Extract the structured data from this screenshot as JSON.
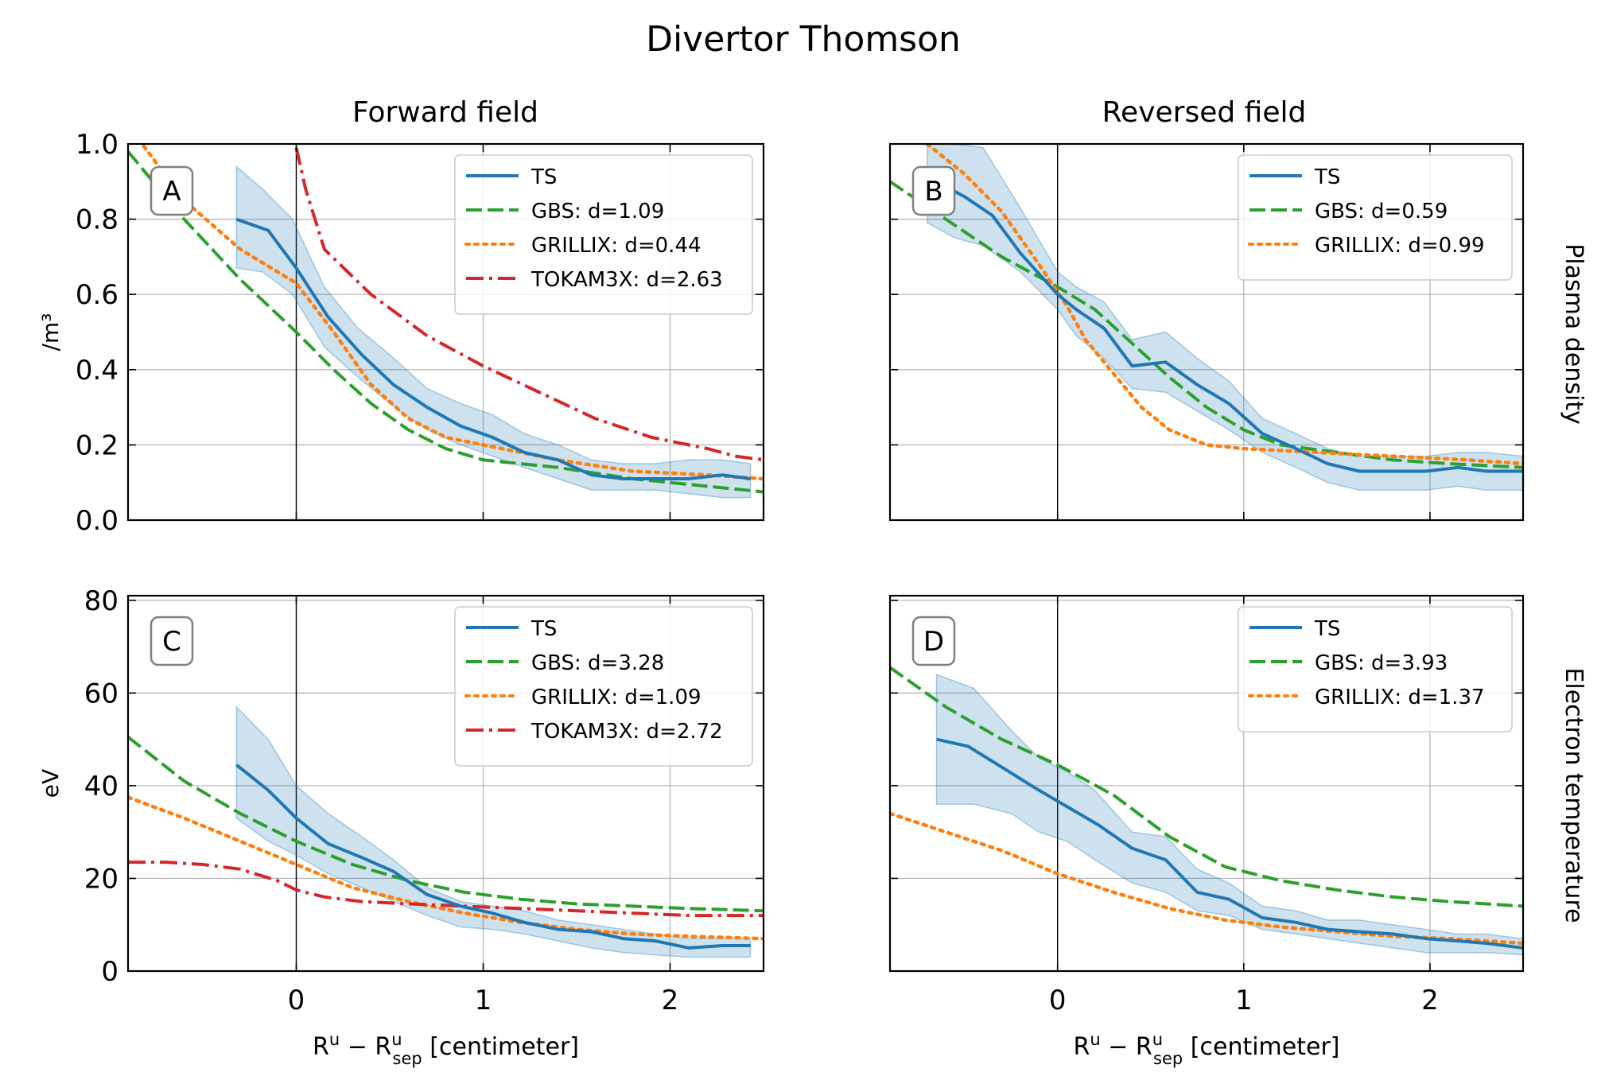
{
  "figure_title": "Divertor Thomson",
  "column_titles": [
    "Forward field",
    "Reversed field"
  ],
  "row_titles": [
    "Plasma density",
    "Electron temperature"
  ],
  "x_label": "R^u - R^u_sep [centimeter]",
  "x_label_parts": {
    "main": "R",
    "sup": "u",
    "minus": " − ",
    "main2": "R",
    "sup2": "u",
    "sub2": "sep",
    "unit": " [centimeter]"
  },
  "colors": {
    "TS": "#1f77b4",
    "GBS": "#2ca02c",
    "GRILLIX": "#ff7f0e",
    "TOKAM3X": "#d62728",
    "band": "#1f77b4"
  },
  "chart_data": [
    {
      "panel": "A",
      "type": "line",
      "title": "Forward field",
      "xlim": [
        -0.9,
        2.5
      ],
      "ylim": [
        0,
        1.0
      ],
      "xticks": [
        0,
        1,
        2
      ],
      "yticks": [
        0.0,
        0.2,
        0.4,
        0.6,
        0.8,
        1.0
      ],
      "ytick_labels": [
        "0.0",
        "0.2",
        "0.4",
        "0.6",
        "0.8",
        "1.0"
      ],
      "ylabel": "/m³",
      "show_xticklabels": false,
      "show_yticklabels": true,
      "band": {
        "x": [
          -0.32,
          -0.18,
          -0.02,
          0.15,
          0.33,
          0.5,
          0.7,
          0.88,
          1.05,
          1.22,
          1.4,
          1.58,
          1.75,
          1.92,
          2.1,
          2.28,
          2.43
        ],
        "upper": [
          0.94,
          0.88,
          0.8,
          0.62,
          0.51,
          0.44,
          0.35,
          0.31,
          0.28,
          0.23,
          0.2,
          0.16,
          0.15,
          0.15,
          0.16,
          0.16,
          0.15
        ],
        "lower": [
          0.67,
          0.66,
          0.6,
          0.46,
          0.38,
          0.31,
          0.24,
          0.2,
          0.17,
          0.14,
          0.11,
          0.08,
          0.08,
          0.08,
          0.07,
          0.06,
          0.06
        ]
      },
      "series": [
        {
          "name": "TS",
          "legend": "TS",
          "style": "solid",
          "x": [
            -0.32,
            -0.15,
            0.0,
            0.17,
            0.35,
            0.52,
            0.7,
            0.88,
            1.05,
            1.22,
            1.4,
            1.58,
            1.75,
            1.92,
            2.1,
            2.28,
            2.43
          ],
          "y": [
            0.8,
            0.77,
            0.67,
            0.54,
            0.44,
            0.36,
            0.3,
            0.25,
            0.22,
            0.18,
            0.16,
            0.12,
            0.11,
            0.11,
            0.11,
            0.12,
            0.11
          ]
        },
        {
          "name": "GBS",
          "legend": "GBS: d=1.09",
          "style": "dashed",
          "x": [
            -0.9,
            -0.6,
            -0.3,
            0.0,
            0.2,
            0.4,
            0.6,
            0.8,
            1.0,
            1.4,
            1.8,
            2.2,
            2.5
          ],
          "y": [
            0.98,
            0.8,
            0.64,
            0.5,
            0.4,
            0.31,
            0.24,
            0.19,
            0.16,
            0.14,
            0.11,
            0.09,
            0.075
          ]
        },
        {
          "name": "GRILLIX",
          "legend": "GRILLIX: d=0.44",
          "style": "dotted",
          "x": [
            -0.9,
            -0.6,
            -0.3,
            0.0,
            0.2,
            0.4,
            0.6,
            0.8,
            1.0,
            1.4,
            1.8,
            2.2,
            2.5
          ],
          "y": [
            1.05,
            0.85,
            0.72,
            0.63,
            0.5,
            0.36,
            0.27,
            0.22,
            0.2,
            0.16,
            0.13,
            0.12,
            0.11
          ]
        },
        {
          "name": "TOKAM3X",
          "legend": "TOKAM3X: d=2.63",
          "style": "dashdot",
          "x": [
            0.0,
            0.05,
            0.15,
            0.4,
            0.7,
            1.0,
            1.3,
            1.6,
            1.9,
            2.2,
            2.35,
            2.5
          ],
          "y": [
            0.99,
            0.88,
            0.72,
            0.6,
            0.49,
            0.41,
            0.34,
            0.27,
            0.22,
            0.19,
            0.17,
            0.16
          ]
        }
      ]
    },
    {
      "panel": "B",
      "type": "line",
      "title": "Reversed field",
      "xlim": [
        -0.9,
        2.5
      ],
      "ylim": [
        0,
        1.0
      ],
      "xticks": [
        0,
        1,
        2
      ],
      "yticks": [
        0.0,
        0.2,
        0.4,
        0.6,
        0.8,
        1.0
      ],
      "ytick_labels": [],
      "ylabel": "",
      "row_title": "Plasma density",
      "show_xticklabels": false,
      "show_yticklabels": false,
      "band": {
        "x": [
          -0.7,
          -0.55,
          -0.4,
          -0.2,
          0.0,
          0.1,
          0.25,
          0.4,
          0.58,
          0.75,
          0.92,
          1.1,
          1.28,
          1.45,
          1.62,
          1.8,
          1.98,
          2.15,
          2.3,
          2.5
        ],
        "upper": [
          1.0,
          1.0,
          0.99,
          0.83,
          0.66,
          0.62,
          0.58,
          0.48,
          0.5,
          0.43,
          0.37,
          0.27,
          0.23,
          0.19,
          0.17,
          0.17,
          0.17,
          0.18,
          0.18,
          0.17
        ],
        "lower": [
          0.79,
          0.75,
          0.73,
          0.66,
          0.56,
          0.49,
          0.43,
          0.35,
          0.34,
          0.29,
          0.24,
          0.18,
          0.14,
          0.1,
          0.08,
          0.08,
          0.08,
          0.09,
          0.08,
          0.08
        ]
      },
      "series": [
        {
          "name": "TS",
          "legend": "TS",
          "style": "solid",
          "x": [
            -0.65,
            -0.5,
            -0.35,
            -0.2,
            0.0,
            0.1,
            0.25,
            0.4,
            0.58,
            0.75,
            0.92,
            1.1,
            1.28,
            1.45,
            1.62,
            1.8,
            1.98,
            2.15,
            2.3,
            2.5
          ],
          "y": [
            0.9,
            0.86,
            0.81,
            0.71,
            0.6,
            0.56,
            0.51,
            0.41,
            0.42,
            0.36,
            0.31,
            0.23,
            0.19,
            0.15,
            0.13,
            0.13,
            0.13,
            0.14,
            0.13,
            0.13
          ]
        },
        {
          "name": "GBS",
          "legend": "GBS: d=0.59",
          "style": "dashed",
          "x": [
            -0.9,
            -0.6,
            -0.3,
            0.0,
            0.2,
            0.4,
            0.6,
            0.8,
            1.0,
            1.2,
            1.5,
            1.8,
            2.1,
            2.5
          ],
          "y": [
            0.9,
            0.8,
            0.7,
            0.62,
            0.56,
            0.47,
            0.38,
            0.3,
            0.24,
            0.2,
            0.18,
            0.16,
            0.15,
            0.14
          ]
        },
        {
          "name": "GRILLIX",
          "legend": "GRILLIX: d=0.99",
          "style": "dotted",
          "x": [
            -0.7,
            -0.5,
            -0.3,
            -0.1,
            0.05,
            0.15,
            0.3,
            0.45,
            0.6,
            0.8,
            1.0,
            1.4,
            1.8,
            2.2,
            2.5
          ],
          "y": [
            1.0,
            0.92,
            0.82,
            0.68,
            0.57,
            0.48,
            0.39,
            0.3,
            0.24,
            0.2,
            0.19,
            0.18,
            0.17,
            0.16,
            0.15
          ]
        }
      ]
    },
    {
      "panel": "C",
      "type": "line",
      "title": "",
      "xlim": [
        -0.9,
        2.5
      ],
      "ylim": [
        0,
        81
      ],
      "xticks": [
        0,
        1,
        2
      ],
      "xtick_labels": [
        "0",
        "1",
        "2"
      ],
      "yticks": [
        0,
        20,
        40,
        60,
        80
      ],
      "ytick_labels": [
        "0",
        "20",
        "40",
        "60",
        "80"
      ],
      "ylabel": "eV",
      "xlabel": "R^u - R^u_sep [centimeter]",
      "show_xticklabels": true,
      "show_yticklabels": true,
      "band": {
        "x": [
          -0.32,
          -0.15,
          0.0,
          0.17,
          0.35,
          0.52,
          0.7,
          0.88,
          1.05,
          1.22,
          1.4,
          1.58,
          1.75,
          1.92,
          2.1,
          2.28,
          2.43
        ],
        "upper": [
          57,
          50,
          40,
          34,
          29,
          24,
          18,
          15,
          14,
          13,
          11,
          10,
          9,
          8,
          7,
          7,
          7
        ],
        "lower": [
          33,
          28,
          25,
          21,
          18,
          15,
          12,
          9.5,
          9,
          8,
          6.5,
          5,
          4,
          3.5,
          3,
          3,
          3
        ]
      },
      "series": [
        {
          "name": "TS",
          "legend": "TS",
          "style": "solid",
          "x": [
            -0.32,
            -0.15,
            0.0,
            0.17,
            0.35,
            0.52,
            0.7,
            0.88,
            1.05,
            1.22,
            1.4,
            1.58,
            1.75,
            1.92,
            2.1,
            2.28,
            2.43
          ],
          "y": [
            44.5,
            39,
            33,
            27.5,
            24.5,
            21.5,
            16.5,
            14,
            12.5,
            10.5,
            9,
            8.5,
            7,
            6.5,
            5,
            5.5,
            5.5
          ]
        },
        {
          "name": "GBS",
          "legend": "GBS: d=3.28",
          "style": "dashed",
          "x": [
            -0.9,
            -0.6,
            -0.3,
            0.0,
            0.3,
            0.6,
            0.9,
            1.2,
            1.5,
            1.8,
            2.1,
            2.5
          ],
          "y": [
            50.5,
            41,
            34,
            28,
            23,
            19.5,
            17,
            15.5,
            14.5,
            14,
            13.5,
            13
          ]
        },
        {
          "name": "GRILLIX",
          "legend": "GRILLIX: d=1.09",
          "style": "dotted",
          "x": [
            -0.9,
            -0.6,
            -0.3,
            0.0,
            0.3,
            0.6,
            0.9,
            1.2,
            1.5,
            1.8,
            2.1,
            2.5
          ],
          "y": [
            37.5,
            33,
            28,
            23,
            18,
            15,
            12.5,
            10.5,
            9,
            8,
            7.5,
            7
          ]
        },
        {
          "name": "TOKAM3X",
          "legend": "TOKAM3X: d=2.72",
          "style": "dashdot",
          "x": [
            -0.9,
            -0.7,
            -0.5,
            -0.3,
            -0.1,
            0.0,
            0.15,
            0.35,
            0.6,
            0.9,
            1.2,
            1.5,
            1.8,
            2.1,
            2.5
          ],
          "y": [
            23.5,
            23.5,
            23,
            22,
            19.5,
            17.5,
            16,
            15,
            14.5,
            14,
            13.5,
            13,
            12.5,
            12,
            12
          ]
        }
      ]
    },
    {
      "panel": "D",
      "type": "line",
      "title": "",
      "xlim": [
        -0.9,
        2.5
      ],
      "ylim": [
        0,
        81
      ],
      "xticks": [
        0,
        1,
        2
      ],
      "xtick_labels": [
        "0",
        "1",
        "2"
      ],
      "yticks": [
        0,
        20,
        40,
        60,
        80
      ],
      "ytick_labels": [],
      "ylabel": "",
      "xlabel": "R^u - R^u_sep [centimeter]",
      "row_title": "Electron temperature",
      "show_xticklabels": true,
      "show_yticklabels": false,
      "band": {
        "x": [
          -0.65,
          -0.45,
          -0.25,
          -0.1,
          0.05,
          0.2,
          0.4,
          0.58,
          0.75,
          0.92,
          1.1,
          1.28,
          1.45,
          1.62,
          1.8,
          1.98,
          2.15,
          2.3,
          2.5
        ],
        "upper": [
          64,
          61,
          52,
          46,
          43,
          39,
          30,
          29,
          22,
          19,
          14,
          13,
          11,
          11,
          10,
          9,
          8,
          8,
          7
        ],
        "lower": [
          36,
          36,
          34,
          30,
          28,
          24,
          19,
          17,
          13,
          12,
          9,
          8,
          7,
          6,
          5,
          4,
          4,
          4,
          3.5
        ]
      },
      "series": [
        {
          "name": "TS",
          "legend": "TS",
          "style": "solid",
          "x": [
            -0.65,
            -0.48,
            -0.3,
            -0.12,
            0.05,
            0.22,
            0.4,
            0.58,
            0.75,
            0.92,
            1.1,
            1.28,
            1.45,
            1.62,
            1.8,
            1.98,
            2.15,
            2.3,
            2.5
          ],
          "y": [
            50,
            48.5,
            44,
            39.5,
            35.5,
            31.5,
            26.5,
            24,
            17,
            15.5,
            11.5,
            10.5,
            9,
            8.5,
            8,
            7,
            6.5,
            6,
            5
          ]
        },
        {
          "name": "GBS",
          "legend": "GBS: d=3.93",
          "style": "dashed",
          "x": [
            -0.9,
            -0.6,
            -0.3,
            0.0,
            0.3,
            0.6,
            0.9,
            1.2,
            1.5,
            1.8,
            2.1,
            2.5
          ],
          "y": [
            65.5,
            57,
            50,
            44.5,
            38,
            29,
            22.5,
            19.5,
            17.5,
            16,
            15,
            14
          ]
        },
        {
          "name": "GRILLIX",
          "legend": "GRILLIX: d=1.37",
          "style": "dotted",
          "x": [
            -0.9,
            -0.6,
            -0.3,
            0.0,
            0.3,
            0.6,
            0.9,
            1.2,
            1.5,
            1.8,
            2.1,
            2.5
          ],
          "y": [
            34,
            30,
            26,
            21,
            17,
            13.5,
            11,
            9.5,
            8.5,
            7.5,
            7,
            6
          ]
        }
      ]
    }
  ]
}
